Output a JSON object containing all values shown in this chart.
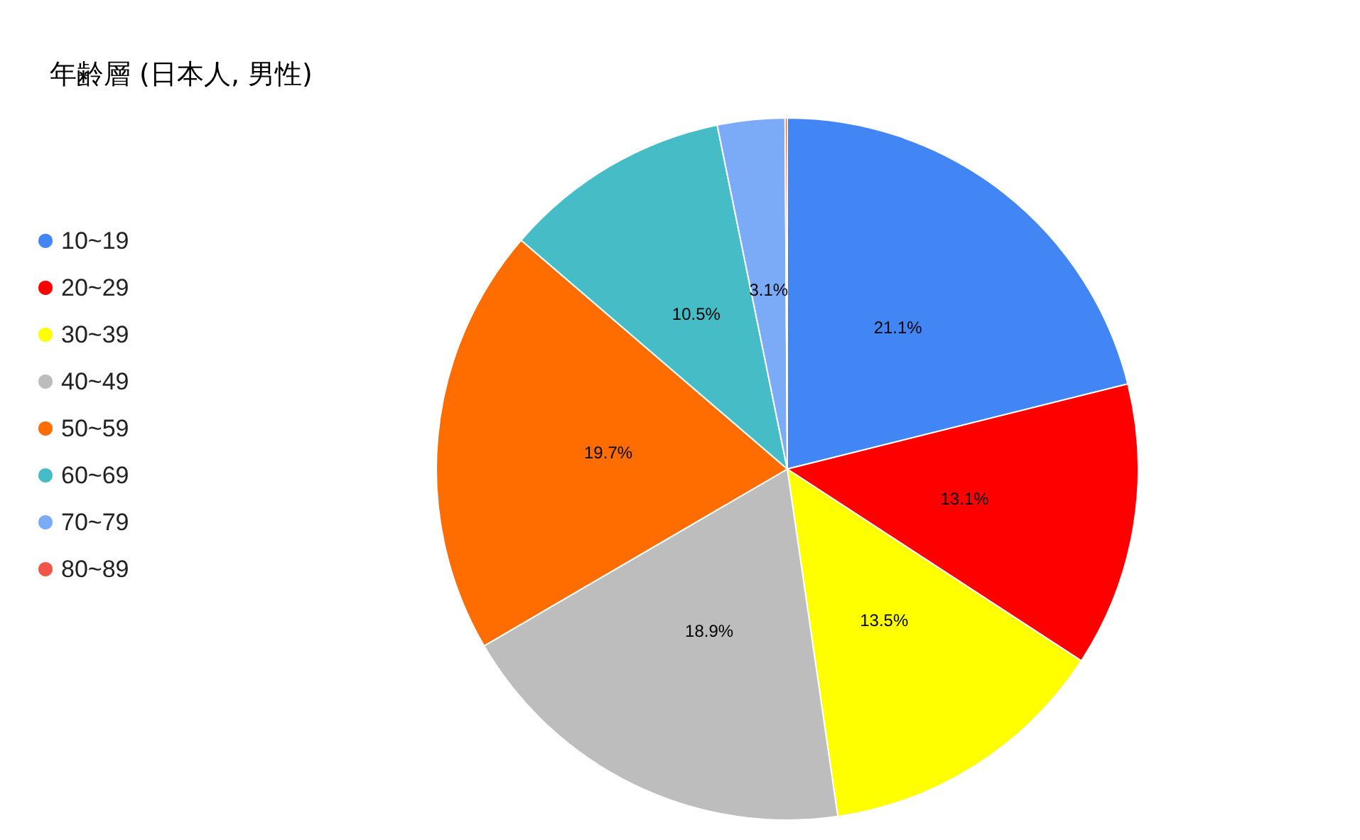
{
  "chart_data": {
    "type": "pie",
    "title": "年齢層 (日本人, 男性)",
    "categories": [
      "10~19",
      "20~29",
      "30~39",
      "40~49",
      "50~59",
      "60~69",
      "70~79",
      "80~89"
    ],
    "values": [
      21.1,
      13.1,
      13.5,
      18.9,
      19.7,
      10.5,
      3.1,
      0.1
    ],
    "colors": [
      "#4285f4",
      "#ff0000",
      "#ffff00",
      "#bdbdbd",
      "#ff6d01",
      "#46bdc6",
      "#7baaf7",
      "#f15549"
    ],
    "value_labels": [
      "21.1%",
      "13.1%",
      "13.5%",
      "18.9%",
      "19.7%",
      "10.5%",
      "3.1%",
      null
    ],
    "legend": "left"
  }
}
